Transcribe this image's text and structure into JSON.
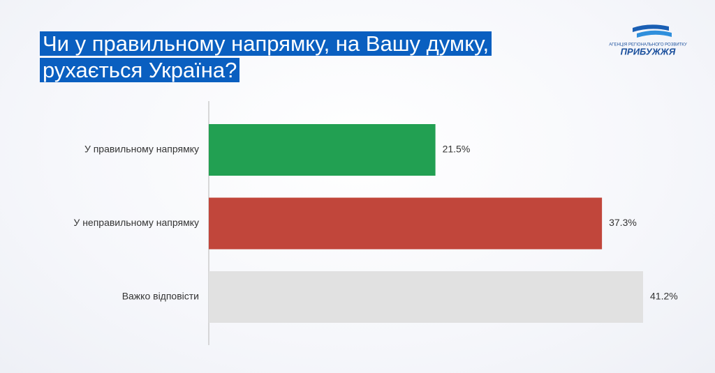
{
  "chart_data": {
    "type": "bar",
    "orientation": "horizontal",
    "title": "Чи у правильному напрямку, на Вашу думку, рухається Україна?",
    "categories": [
      "У правильному напрямку",
      "У неправильному напрямку",
      "Важко відповісти"
    ],
    "values": [
      21.5,
      37.3,
      41.2
    ],
    "value_labels": [
      "21.5%",
      "37.3%",
      "41.2%"
    ],
    "colors": [
      "#22a052",
      "#c1463b",
      "#e1e1e1"
    ]
  },
  "logo": {
    "subtitle": "АГЕНЦІЯ РЕГІОНАЛЬНОГО РОЗВИТКУ",
    "name": "ПРИБУЖЖЯ"
  }
}
